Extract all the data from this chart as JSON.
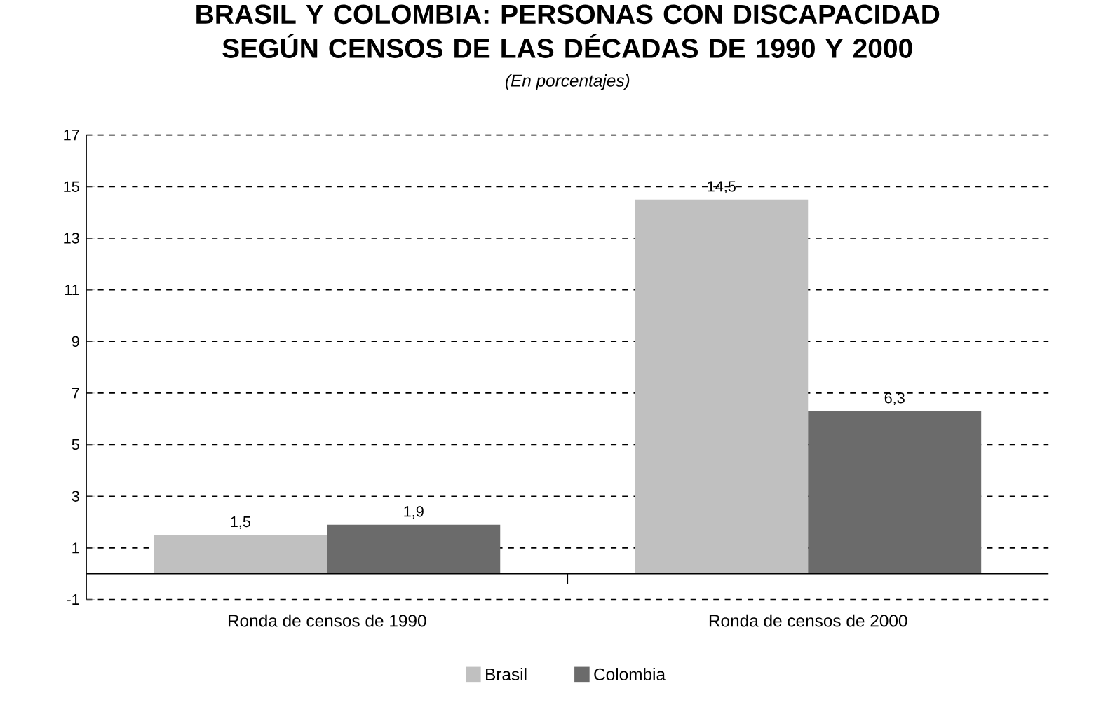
{
  "chart_data": {
    "type": "bar",
    "title": "BRASIL Y COLOMBIA: PERSONAS CON DISCAPACIDAD SEGÚN CENSOS DE LAS DÉCADAS DE 1990 Y 2000",
    "subtitle": "(En porcentajes)",
    "categories": [
      "Ronda de censos de 1990",
      "Ronda de censos de 2000"
    ],
    "series": [
      {
        "name": "Brasil",
        "color": "#c0c0c0",
        "values": [
          1.5,
          14.5
        ],
        "value_labels": [
          "1,5",
          "14,5"
        ]
      },
      {
        "name": "Colombia",
        "color": "#6b6b6b",
        "values": [
          1.9,
          6.3
        ],
        "value_labels": [
          "1,9",
          "6,3"
        ]
      }
    ],
    "ylim": [
      -1,
      17
    ],
    "yticks": [
      -1,
      1,
      3,
      5,
      7,
      9,
      11,
      13,
      15,
      17
    ],
    "grid": "y",
    "legend": "bottom"
  }
}
